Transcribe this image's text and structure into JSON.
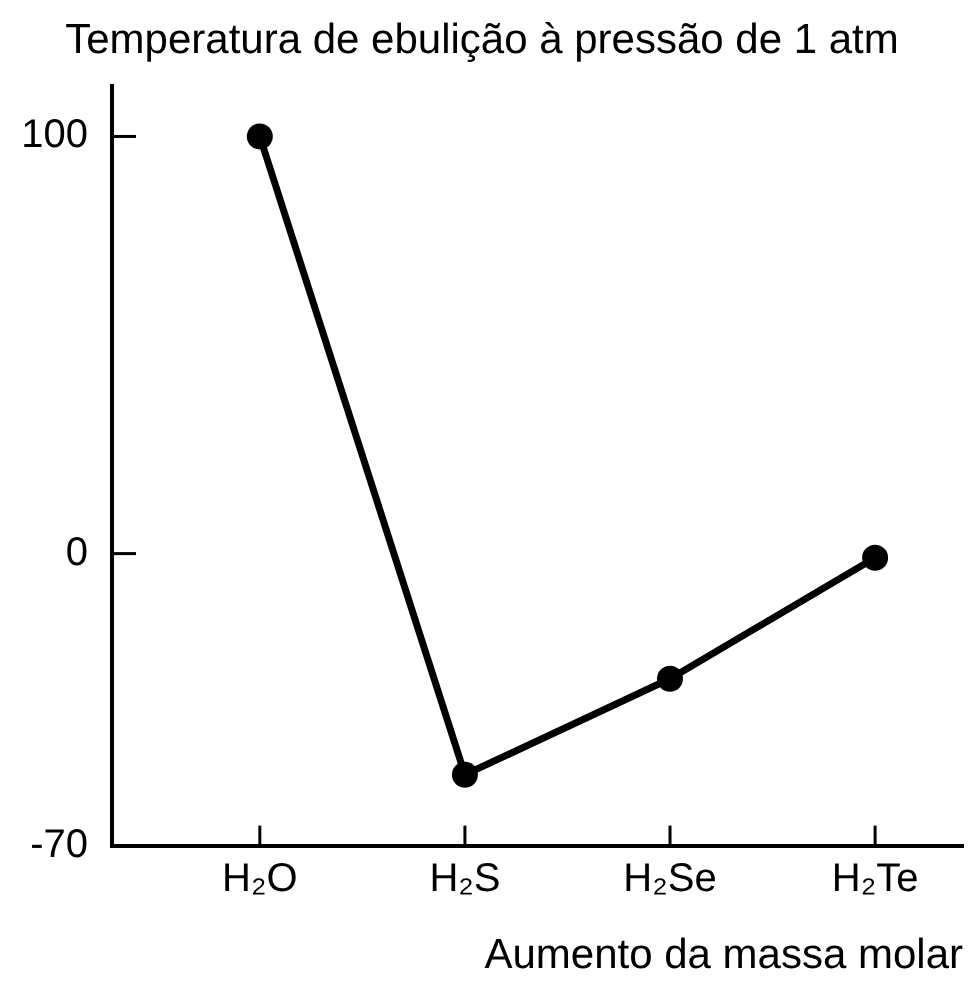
{
  "chart_data": {
    "type": "line",
    "title": "Temperatura de ebulição à pressão de 1 atm",
    "xlabel": "Aumento da massa molar",
    "categories": [
      "H₂O",
      "H₂S",
      "H₂Se",
      "H₂Te"
    ],
    "values": [
      100,
      -53,
      -30,
      -1
    ],
    "color": "#000000",
    "ylim": [
      -70,
      112
    ],
    "yticks": [
      100,
      0,
      -70
    ],
    "grid": false,
    "legend": false,
    "marker": "circle",
    "line_style": "solid"
  }
}
